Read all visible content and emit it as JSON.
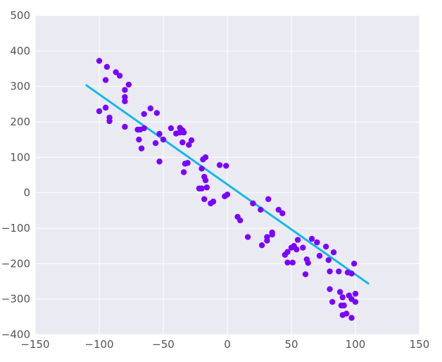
{
  "chart_data": {
    "type": "scatter",
    "title": "",
    "xlabel": "",
    "ylabel": "",
    "xlim": [
      -150,
      150
    ],
    "ylim": [
      -400,
      500
    ],
    "x_ticks": [
      -150,
      -100,
      -50,
      0,
      50,
      100,
      150
    ],
    "x_tick_labels": [
      "−150",
      "−100",
      "−50",
      "0",
      "50",
      "100",
      "150"
    ],
    "y_ticks": [
      -400,
      -300,
      -200,
      -100,
      0,
      100,
      200,
      300,
      400,
      500
    ],
    "y_tick_labels": [
      "−400",
      "−300",
      "−200",
      "−100",
      "0",
      "100",
      "200",
      "300",
      "400",
      "500"
    ],
    "grid": true,
    "colors": {
      "background": "#eaeaf2",
      "grid": "#ffffff",
      "points": "#7a00ff",
      "fit_line": "#15b8e8"
    },
    "series": [
      {
        "kind": "scatter",
        "points": [
          [
            -100,
            372
          ],
          [
            -94,
            355
          ],
          [
            -95,
            318
          ],
          [
            -87,
            340
          ],
          [
            -84,
            330
          ],
          [
            -77,
            305
          ],
          [
            -80,
            290
          ],
          [
            -80,
            270
          ],
          [
            -80,
            258
          ],
          [
            -100,
            230
          ],
          [
            -95,
            240
          ],
          [
            -92,
            212
          ],
          [
            -92,
            202
          ],
          [
            -80,
            186
          ],
          [
            -60,
            238
          ],
          [
            -65,
            222
          ],
          [
            -55,
            225
          ],
          [
            -68,
            178
          ],
          [
            -65,
            182
          ],
          [
            -70,
            178
          ],
          [
            -69,
            150
          ],
          [
            -67,
            125
          ],
          [
            -53,
            166
          ],
          [
            -50,
            150
          ],
          [
            -56,
            140
          ],
          [
            -44,
            182
          ],
          [
            -40,
            167
          ],
          [
            -37,
            170
          ],
          [
            -37,
            183
          ],
          [
            -35,
            176
          ],
          [
            -34,
            170
          ],
          [
            -28,
            148
          ],
          [
            -30,
            135
          ],
          [
            -35,
            142
          ],
          [
            -53,
            88
          ],
          [
            -33,
            82
          ],
          [
            -31,
            84
          ],
          [
            -34,
            58
          ],
          [
            -17,
            100
          ],
          [
            -19,
            94
          ],
          [
            -20,
            68
          ],
          [
            -18,
            45
          ],
          [
            -17,
            35
          ],
          [
            -20,
            12
          ],
          [
            -16,
            15
          ],
          [
            -22,
            12
          ],
          [
            -18,
            -18
          ],
          [
            -13,
            -30
          ],
          [
            -11,
            -25
          ],
          [
            -6,
            78
          ],
          [
            -1,
            76
          ],
          [
            -2,
            -10
          ],
          [
            0,
            -5
          ],
          [
            8,
            -68
          ],
          [
            10,
            -78
          ],
          [
            16,
            -125
          ],
          [
            20,
            -30
          ],
          [
            26,
            -48
          ],
          [
            32,
            -18
          ],
          [
            27,
            -148
          ],
          [
            31,
            -135
          ],
          [
            31,
            -125
          ],
          [
            35,
            -112
          ],
          [
            35,
            -118
          ],
          [
            40,
            -48
          ],
          [
            43,
            -58
          ],
          [
            45,
            -175
          ],
          [
            47,
            -167
          ],
          [
            47,
            -197
          ],
          [
            51,
            -197
          ],
          [
            50,
            -155
          ],
          [
            52,
            -150
          ],
          [
            55,
            -133
          ],
          [
            54,
            -160
          ],
          [
            59,
            -155
          ],
          [
            61,
            -230
          ],
          [
            62,
            -188
          ],
          [
            63,
            -198
          ],
          [
            66,
            -130
          ],
          [
            70,
            -140
          ],
          [
            72,
            -178
          ],
          [
            77,
            -152
          ],
          [
            79,
            -190
          ],
          [
            83,
            -168
          ],
          [
            80,
            -222
          ],
          [
            87,
            -222
          ],
          [
            82,
            -308
          ],
          [
            80,
            -272
          ],
          [
            88,
            -280
          ],
          [
            90,
            -295
          ],
          [
            89,
            -318
          ],
          [
            91,
            -318
          ],
          [
            90,
            -345
          ],
          [
            93,
            -341
          ],
          [
            94,
            -225
          ],
          [
            97,
            -228
          ],
          [
            97,
            -353
          ],
          [
            100,
            -285
          ],
          [
            95,
            -290
          ],
          [
            97,
            -300
          ],
          [
            100,
            -308
          ],
          [
            99,
            -200
          ]
        ]
      },
      {
        "kind": "line",
        "points": [
          [
            -110,
            303
          ],
          [
            110,
            -256
          ]
        ]
      }
    ]
  }
}
